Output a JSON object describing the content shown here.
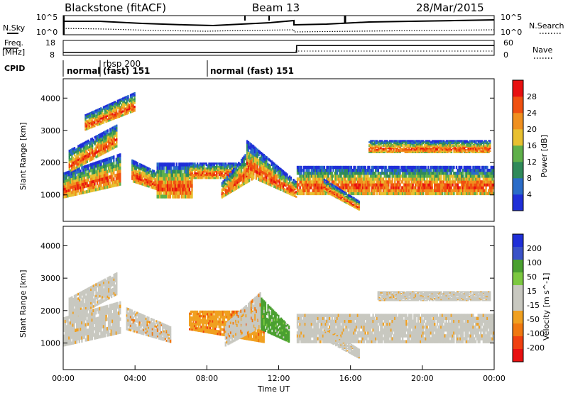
{
  "header": {
    "station": "Blackstone (fitACF)",
    "beam": "Beam 13",
    "date": "28/Mar/2015"
  },
  "noise_panel": {
    "left_label": "N.Sky",
    "right_label": "N.Search",
    "left_ticks": [
      "10^5",
      "10^0"
    ],
    "right_ticks": [
      "10^5",
      "10^0"
    ]
  },
  "freq_panel": {
    "left_label_1": "Freq.",
    "left_label_2": "[MHz]",
    "right_label": "Nave",
    "left_ticks": [
      "18",
      "8"
    ],
    "right_ticks": [
      "60",
      "0"
    ],
    "freq_steps": [
      {
        "t": 0,
        "v": 10
      },
      {
        "t": 13.0,
        "v": 10
      },
      {
        "t": 13.0,
        "v": 14.5
      },
      {
        "t": 24,
        "v": 14.5
      }
    ]
  },
  "cpid": {
    "label": "CPID",
    "segments": [
      {
        "start": 0,
        "text": "normal",
        "sub": ""
      },
      {
        "start": 1.75,
        "text": "rbsp 200",
        "sub": "(fast)  151"
      },
      {
        "start": 8.0,
        "text": "normal (fast)  151",
        "sub": ""
      }
    ]
  },
  "colors": {
    "power": [
      "#1f2fd8",
      "#2a6cc8",
      "#2f8a5a",
      "#5fb04a",
      "#e8c030",
      "#f0901f",
      "#f05010",
      "#e81010"
    ],
    "velocity": [
      "#1f2fd8",
      "#3a52c8",
      "#4aa030",
      "#7cc840",
      "#c8c8c0",
      "#c8c8c0",
      "#f0a020",
      "#f07810",
      "#f04010",
      "#e81010"
    ]
  },
  "chart_data": [
    {
      "type": "heatmap",
      "panel": "power",
      "xlabel": "Time UT",
      "ylabel": "Slant Range [km]",
      "xlim": [
        0,
        24
      ],
      "ylim": [
        180,
        4600
      ],
      "yticks": [
        1000,
        2000,
        3000,
        4000
      ],
      "colorbar": {
        "label": "Power [dB]",
        "ticks": [
          4,
          8,
          12,
          16,
          20,
          24,
          28
        ],
        "range": [
          0,
          32
        ]
      },
      "bands": [
        {
          "t0": 0.0,
          "t1": 3.2,
          "r0": 900,
          "r1": 1700,
          "r0b": 1300,
          "r1b": 2300
        },
        {
          "t0": 0.3,
          "t1": 3.0,
          "r0": 1700,
          "r1": 2400,
          "r0b": 2500,
          "r1b": 3200
        },
        {
          "t0": 1.2,
          "t1": 4.0,
          "r0": 3000,
          "r1": 3500,
          "r0b": 3600,
          "r1b": 4200
        },
        {
          "t0": 3.8,
          "t1": 6.0,
          "r0": 1400,
          "r1": 2100,
          "r0b": 1000,
          "r1b": 1500
        },
        {
          "t0": 5.2,
          "t1": 7.2,
          "r0": 900,
          "r1": 2000,
          "r0b": 900,
          "r1b": 2000
        },
        {
          "t0": 7.0,
          "t1": 9.8,
          "r0": 1500,
          "r1": 2000,
          "r0b": 1500,
          "r1b": 2000
        },
        {
          "t0": 8.8,
          "t1": 10.6,
          "r0": 900,
          "r1": 1400,
          "r0b": 1500,
          "r1b": 2600
        },
        {
          "t0": 10.2,
          "t1": 13.0,
          "r0": 1600,
          "r1": 2700,
          "r0b": 900,
          "r1b": 1400
        },
        {
          "t0": 13.0,
          "t1": 24.0,
          "r0": 1000,
          "r1": 1900,
          "r0b": 1000,
          "r1b": 1900
        },
        {
          "t0": 14.5,
          "t1": 16.5,
          "r0": 1100,
          "r1": 1500,
          "r0b": 500,
          "r1b": 800
        },
        {
          "t0": 17.0,
          "t1": 23.8,
          "r0": 2300,
          "r1": 2700,
          "r0b": 2300,
          "r1b": 2700
        }
      ]
    },
    {
      "type": "heatmap",
      "panel": "velocity",
      "xlabel": "Time UT",
      "ylabel": "Slant Range [km]",
      "xlim": [
        0,
        24
      ],
      "ylim": [
        180,
        4600
      ],
      "yticks": [
        1000,
        2000,
        3000,
        4000
      ],
      "xticks": [
        "00:00",
        "04:00",
        "08:00",
        "12:00",
        "16:00",
        "20:00",
        "00:00"
      ],
      "colorbar": {
        "label": "Velocity [m s^-1]",
        "ticks": [
          200,
          100,
          50,
          15,
          -15,
          -50,
          -100,
          -200
        ]
      },
      "bands": [
        {
          "t0": 0.0,
          "t1": 3.2,
          "r0": 900,
          "r1": 1800,
          "r0b": 1300,
          "r1b": 2300,
          "v": -15
        },
        {
          "t0": 0.3,
          "t1": 3.0,
          "r0": 1700,
          "r1": 2400,
          "r0b": 2500,
          "r1b": 3200,
          "v": -15
        },
        {
          "t0": 3.5,
          "t1": 6.0,
          "r0": 1400,
          "r1": 2100,
          "r0b": 1000,
          "r1b": 1500,
          "v": -50
        },
        {
          "t0": 7.0,
          "t1": 11.2,
          "r0": 1400,
          "r1": 2000,
          "r0b": 1000,
          "r1b": 2000,
          "v": -100
        },
        {
          "t0": 9.0,
          "t1": 11.0,
          "r0": 900,
          "r1": 1600,
          "r0b": 1500,
          "r1b": 2600,
          "v": -50
        },
        {
          "t0": 11.0,
          "t1": 12.6,
          "r0": 1400,
          "r1": 2400,
          "r0b": 1000,
          "r1b": 1500,
          "v": 50
        },
        {
          "t0": 13.0,
          "t1": 24.0,
          "r0": 1000,
          "r1": 1900,
          "r0b": 1000,
          "r1b": 1900,
          "v": -15
        },
        {
          "t0": 14.5,
          "t1": 16.5,
          "r0": 1100,
          "r1": 1500,
          "r0b": 500,
          "r1b": 800,
          "v": -15
        },
        {
          "t0": 17.5,
          "t1": 23.8,
          "r0": 2300,
          "r1": 2600,
          "r0b": 2300,
          "r1b": 2600,
          "v": -15
        }
      ]
    }
  ]
}
